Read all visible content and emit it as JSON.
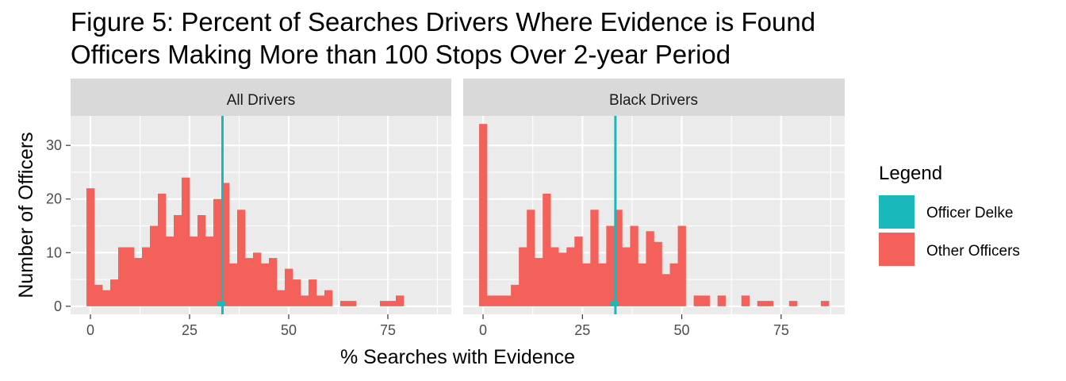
{
  "chart_data": {
    "type": "bar",
    "title": "Figure 5: Percent of Searches Drivers Where Evidence is Found",
    "subtitle": "Officers Making More than 100 Stops Over 2-year Period",
    "xlabel": "% Searches with Evidence",
    "ylabel": "Number of Officers",
    "xlim": [
      -5,
      91
    ],
    "ylim": [
      -1.5,
      35.5
    ],
    "x_ticks": [
      0,
      25,
      50,
      75
    ],
    "y_ticks": [
      0,
      10,
      20,
      30
    ],
    "bin_width": 2,
    "grid": true,
    "legend": {
      "title": "Legend",
      "position": "right",
      "entries": [
        {
          "label": "Officer Delke",
          "color": "#19b8bb"
        },
        {
          "label": "Other Officers",
          "color": "#f4615b"
        }
      ]
    },
    "reference_line": {
      "label": "Officer Delke",
      "x": 33.3,
      "color": "#19b8bb"
    },
    "panels": [
      {
        "strip": "All Drivers",
        "series": [
          {
            "name": "Other Officers",
            "color": "#f4615b",
            "bin_starts": [
              0,
              2,
              4,
              6,
              8,
              10,
              12,
              14,
              16,
              18,
              20,
              22,
              24,
              26,
              28,
              30,
              32,
              34,
              36,
              38,
              40,
              42,
              44,
              46,
              48,
              50,
              52,
              54,
              56,
              58,
              60,
              62,
              64,
              66,
              68,
              70,
              72,
              74,
              76,
              78
            ],
            "values": [
              22,
              4,
              3,
              5,
              11,
              11,
              9,
              11,
              15,
              21,
              13,
              17,
              24,
              13,
              17,
              13,
              20,
              23,
              8,
              18,
              9,
              10,
              8,
              9,
              3,
              7,
              5,
              2,
              5,
              2,
              3,
              0,
              1,
              1,
              0,
              0,
              0,
              1,
              1,
              2
            ]
          },
          {
            "name": "Officer Delke",
            "color": "#19b8bb",
            "bin_starts": [
              33
            ],
            "values": [
              1
            ]
          }
        ]
      },
      {
        "strip": "Black Drivers",
        "series": [
          {
            "name": "Other Officers",
            "color": "#f4615b",
            "bin_starts": [
              0,
              2,
              4,
              6,
              8,
              10,
              12,
              14,
              16,
              18,
              20,
              22,
              24,
              26,
              28,
              30,
              32,
              34,
              36,
              38,
              40,
              42,
              44,
              46,
              48,
              50,
              52,
              54,
              56,
              58,
              60,
              62,
              64,
              66,
              68,
              70,
              72,
              74,
              76,
              78,
              80,
              82,
              84,
              86
            ],
            "values": [
              34,
              2,
              2,
              2,
              4,
              11,
              18,
              9,
              21,
              11,
              10,
              11,
              13,
              8,
              18,
              8,
              15,
              18,
              11,
              15,
              8,
              14,
              12,
              6,
              8,
              15,
              0,
              2,
              2,
              0,
              2,
              0,
              0,
              2,
              0,
              1,
              1,
              0,
              0,
              1,
              0,
              0,
              0,
              1
            ]
          },
          {
            "name": "Officer Delke",
            "color": "#19b8bb",
            "bin_starts": [
              33
            ],
            "values": [
              1
            ]
          }
        ]
      }
    ]
  }
}
